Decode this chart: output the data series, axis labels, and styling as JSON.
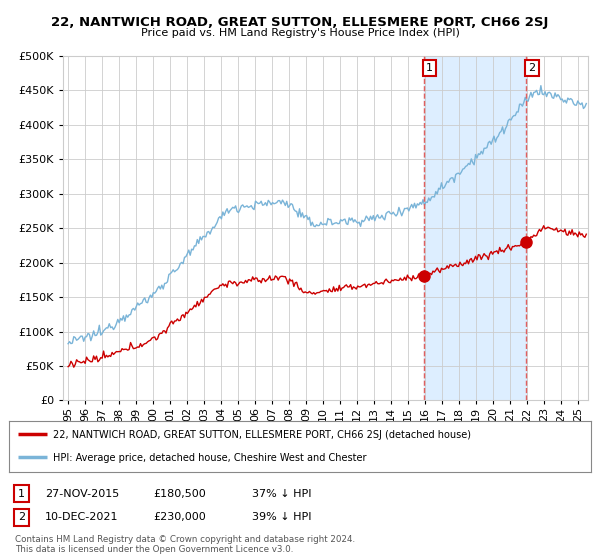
{
  "title": "22, NANTWICH ROAD, GREAT SUTTON, ELLESMERE PORT, CH66 2SJ",
  "subtitle": "Price paid vs. HM Land Registry's House Price Index (HPI)",
  "ylim": [
    0,
    500000
  ],
  "xlim_start": 1994.7,
  "xlim_end": 2025.6,
  "hpi_color": "#7ab4d8",
  "price_color": "#cc0000",
  "vline_color": "#e06060",
  "shade_color": "#ddeeff",
  "sale1_x": 2015.92,
  "sale1_y": 180500,
  "sale2_x": 2021.95,
  "sale2_y": 230000,
  "legend_line1": "22, NANTWICH ROAD, GREAT SUTTON, ELLESMERE PORT, CH66 2SJ (detached house)",
  "legend_line2": "HPI: Average price, detached house, Cheshire West and Chester",
  "table_row1_num": "1",
  "table_row1_date": "27-NOV-2015",
  "table_row1_price": "£180,500",
  "table_row1_hpi": "37% ↓ HPI",
  "table_row2_num": "2",
  "table_row2_date": "10-DEC-2021",
  "table_row2_price": "£230,000",
  "table_row2_hpi": "39% ↓ HPI",
  "footnote": "Contains HM Land Registry data © Crown copyright and database right 2024.\nThis data is licensed under the Open Government Licence v3.0.",
  "bg_color": "#ffffff",
  "grid_color": "#cccccc"
}
